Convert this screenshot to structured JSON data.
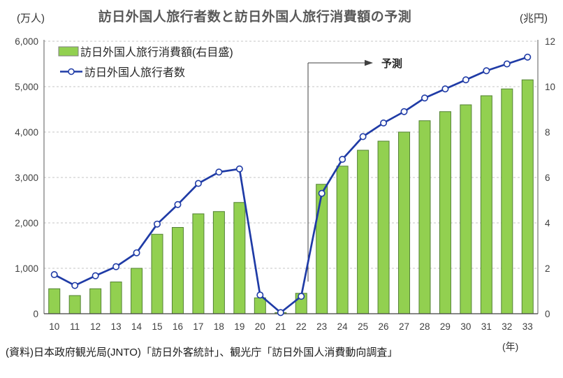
{
  "header": {
    "left_unit": "(万人)",
    "title": "訪日外国人旅行者数と訪日外国人旅行消費額の予測",
    "right_unit": "(兆円)"
  },
  "footer": {
    "source": "(資料)日本政府観光局(JNTO)「訪日外客統計」、観光庁「訪日外国人消費動向調査」",
    "x_unit": "(年)"
  },
  "chart_data": {
    "type": "combo",
    "title": "訪日外国人旅行者数と訪日外国人旅行消費額の予測",
    "categories": [
      "10",
      "11",
      "12",
      "13",
      "14",
      "15",
      "16",
      "17",
      "18",
      "19",
      "20",
      "21",
      "22",
      "23",
      "24",
      "25",
      "26",
      "27",
      "28",
      "29",
      "30",
      "31",
      "32",
      "33"
    ],
    "series": [
      {
        "name": "訪日外国人旅行消費額(右目盛)",
        "type": "bar",
        "axis": "right",
        "color": "#92d050",
        "border_color": "#538135",
        "values": [
          1.1,
          0.8,
          1.1,
          1.4,
          2.0,
          3.5,
          3.8,
          4.4,
          4.5,
          4.9,
          0.7,
          0.05,
          0.9,
          5.7,
          6.5,
          7.2,
          7.6,
          8.0,
          8.5,
          8.9,
          9.2,
          9.6,
          9.9,
          10.3
        ]
      },
      {
        "name": "訪日外国人旅行者数",
        "type": "line",
        "axis": "left",
        "color": "#1f3ba6",
        "marker": "open-circle",
        "values": [
          861,
          622,
          836,
          1036,
          1341,
          1974,
          2404,
          2869,
          3119,
          3188,
          412,
          25,
          383,
          2650,
          3400,
          3900,
          4200,
          4450,
          4750,
          4950,
          5150,
          5350,
          5500,
          5650
        ]
      }
    ],
    "left_axis": {
      "unit": "(万人)",
      "min": 0,
      "max": 6000,
      "step": 1000
    },
    "right_axis": {
      "unit": "(兆円)",
      "min": 0,
      "max": 12,
      "step": 2
    },
    "x_axis": {
      "unit": "(年)"
    },
    "grid": "horizontal-dashed",
    "legend_position": "top-left-inside",
    "annotation": {
      "label": "予測",
      "divider_after_category": "22"
    },
    "colors": {
      "grid": "#c6c6c6",
      "axis": "#404040",
      "text": "#404040"
    }
  }
}
